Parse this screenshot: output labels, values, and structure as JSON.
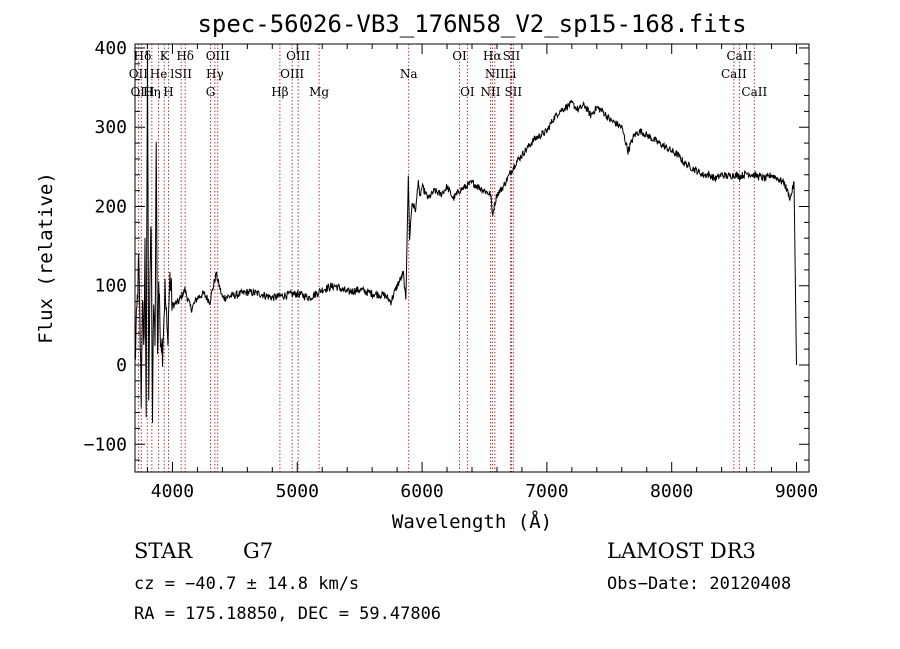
{
  "chart_data": {
    "type": "line",
    "title": "spec-56026-VB3_176N58_V2_sp15-168.fits",
    "xlabel": "Wavelength (Å)",
    "ylabel": "Flux (relative)",
    "xlim": [
      3700,
      9100
    ],
    "ylim": [
      -135,
      405
    ],
    "xticks": [
      4000,
      5000,
      6000,
      7000,
      8000,
      9000
    ],
    "yticks": [
      -100,
      0,
      100,
      200,
      300,
      400
    ],
    "grid": false,
    "series": [
      {
        "name": "flux",
        "x": [
          3700,
          3730,
          3750,
          3760,
          3770,
          3780,
          3790,
          3800,
          3810,
          3820,
          3830,
          3840,
          3850,
          3860,
          3870,
          3880,
          3890,
          3900,
          3920,
          3940,
          3960,
          3980,
          4000,
          4050,
          4100,
          4150,
          4200,
          4250,
          4300,
          4350,
          4400,
          4500,
          4600,
          4700,
          4800,
          4900,
          5000,
          5100,
          5200,
          5300,
          5400,
          5500,
          5600,
          5700,
          5750,
          5800,
          5850,
          5870,
          5880,
          5890,
          5900,
          5920,
          5950,
          5970,
          5980,
          6000,
          6050,
          6100,
          6150,
          6200,
          6250,
          6300,
          6350,
          6400,
          6450,
          6500,
          6550,
          6563,
          6600,
          6650,
          6700,
          6750,
          6800,
          6850,
          6900,
          6950,
          7000,
          7050,
          7100,
          7150,
          7200,
          7250,
          7300,
          7350,
          7400,
          7450,
          7500,
          7550,
          7600,
          7650,
          7700,
          7750,
          7800,
          7850,
          7900,
          7950,
          8000,
          8050,
          8100,
          8150,
          8200,
          8250,
          8300,
          8350,
          8400,
          8450,
          8500,
          8550,
          8600,
          8650,
          8700,
          8750,
          8800,
          8850,
          8900,
          8950,
          8980,
          9000
        ],
        "values": [
          0,
          130,
          -40,
          95,
          10,
          150,
          -60,
          400,
          -30,
          120,
          170,
          -70,
          85,
          15,
          300,
          5,
          110,
          50,
          20,
          95,
          30,
          110,
          75,
          80,
          95,
          70,
          85,
          90,
          80,
          115,
          85,
          88,
          92,
          90,
          85,
          88,
          90,
          85,
          95,
          100,
          92,
          95,
          90,
          88,
          80,
          100,
          115,
          80,
          165,
          235,
          160,
          205,
          195,
          235,
          210,
          225,
          210,
          220,
          215,
          225,
          210,
          220,
          225,
          230,
          225,
          220,
          215,
          190,
          215,
          225,
          240,
          255,
          265,
          275,
          285,
          290,
          295,
          310,
          320,
          325,
          330,
          322,
          328,
          315,
          325,
          320,
          310,
          305,
          300,
          270,
          290,
          295,
          290,
          285,
          280,
          275,
          270,
          265,
          255,
          250,
          245,
          240,
          240,
          235,
          240,
          238,
          240,
          238,
          242,
          240,
          238,
          235,
          240,
          235,
          230,
          210,
          230,
          0
        ]
      }
    ],
    "emission_lines": [
      {
        "label": "Hδ",
        "x": 3760,
        "row": 1
      },
      {
        "label": "K",
        "x": 3934,
        "row": 1
      },
      {
        "label": "Hδ",
        "x": 4102,
        "row": 1
      },
      {
        "label": "OIII",
        "x": 4363,
        "row": 1
      },
      {
        "label": "OIII",
        "x": 5007,
        "row": 1
      },
      {
        "label": "OI",
        "x": 6300,
        "row": 1
      },
      {
        "label": "Hα",
        "x": 6563,
        "row": 1
      },
      {
        "label": "SII",
        "x": 6716,
        "row": 1
      },
      {
        "label": "CaII",
        "x": 8542,
        "row": 1
      },
      {
        "label": "OII",
        "x": 3727,
        "row": 2
      },
      {
        "label": "He",
        "x": 3889,
        "row": 2
      },
      {
        "label": "lSII",
        "x": 4070,
        "row": 2
      },
      {
        "label": "Hγ",
        "x": 4340,
        "row": 2
      },
      {
        "label": "OIII",
        "x": 4959,
        "row": 2
      },
      {
        "label": "Na",
        "x": 5893,
        "row": 2
      },
      {
        "label": "NII",
        "x": 6583,
        "row": 2
      },
      {
        "label": "Li",
        "x": 6708,
        "row": 2
      },
      {
        "label": "CaII",
        "x": 8498,
        "row": 2
      },
      {
        "label": "OIII",
        "x": 3760,
        "row": 3
      },
      {
        "label": "Hη",
        "x": 3835,
        "row": 3
      },
      {
        "label": "H",
        "x": 3968,
        "row": 3
      },
      {
        "label": "G",
        "x": 4305,
        "row": 3
      },
      {
        "label": "Hβ",
        "x": 4861,
        "row": 3
      },
      {
        "label": "Mg",
        "x": 5175,
        "row": 3
      },
      {
        "label": "OI",
        "x": 6363,
        "row": 3
      },
      {
        "label": "NII",
        "x": 6548,
        "row": 3
      },
      {
        "label": "SII",
        "x": 6731,
        "row": 3
      },
      {
        "label": "CaII",
        "x": 8662,
        "row": 3
      }
    ],
    "line_markers_x": [
      3727,
      3750,
      3798,
      3835,
      3889,
      3934,
      3968,
      4070,
      4102,
      4305,
      4340,
      4363,
      4861,
      4959,
      5007,
      5175,
      5893,
      6300,
      6363,
      6548,
      6563,
      6583,
      6708,
      6716,
      6731,
      8498,
      8542,
      8662
    ]
  },
  "info": {
    "object_class": "STAR",
    "subclass": "G7",
    "survey": "LAMOST DR3",
    "cz": "cz = −40.7 ± 14.8 km/s",
    "obs_date": "Obs−Date: 20120408",
    "coords": "RA = 175.18850, DEC =  59.47806"
  }
}
